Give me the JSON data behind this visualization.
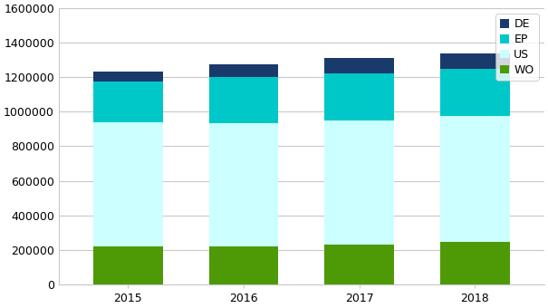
{
  "years": [
    "2015",
    "2016",
    "2017",
    "2018"
  ],
  "WO": [
    220000,
    220000,
    230000,
    245000
  ],
  "US": [
    720000,
    715000,
    720000,
    730000
  ],
  "EP": [
    235000,
    265000,
    275000,
    275000
  ],
  "DE": [
    60000,
    75000,
    85000,
    90000
  ],
  "colors": {
    "WO": "#4e9a06",
    "US": "#ccffff",
    "EP": "#00c8c8",
    "DE": "#1a3a6b"
  },
  "ylim": [
    0,
    1600000
  ],
  "yticks": [
    0,
    200000,
    400000,
    600000,
    800000,
    1000000,
    1200000,
    1400000,
    1600000
  ],
  "bar_width": 0.6,
  "background_color": "#ffffff",
  "grid_color": "#c8c8c8",
  "tick_fontsize": 9,
  "legend_fontsize": 9
}
